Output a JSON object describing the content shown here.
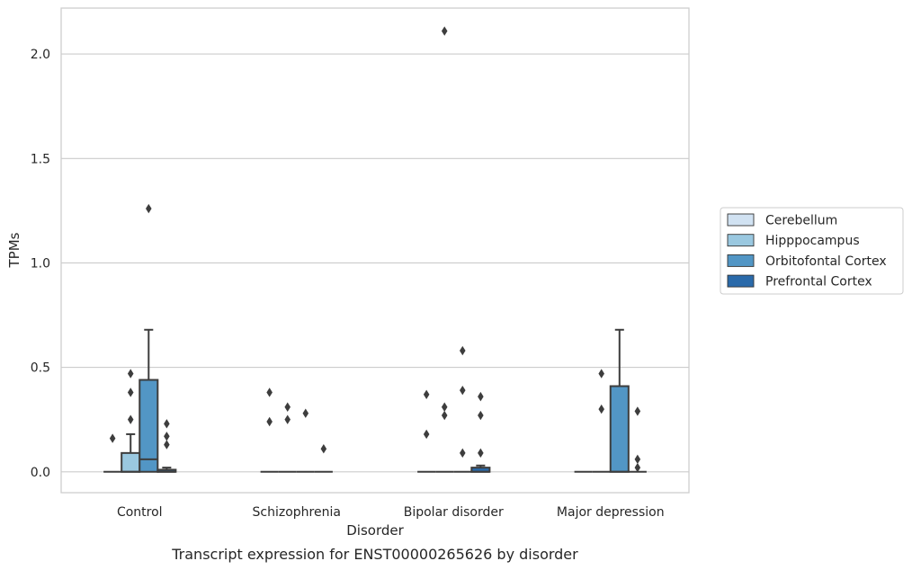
{
  "chart_data": {
    "type": "box",
    "caption": "Transcript expression for ENST00000265626 by disorder",
    "xlabel": "Disorder",
    "ylabel": "TPMs",
    "ylim": [
      -0.1,
      2.22
    ],
    "yticks": [
      0.0,
      0.5,
      1.0,
      1.5,
      2.0
    ],
    "ytick_labels": [
      "0.0",
      "0.5",
      "1.0",
      "1.5",
      "2.0"
    ],
    "grid": "horizontal",
    "legend_position": "right",
    "categories": [
      "Control",
      "Schizophrenia",
      "Bipolar disorder",
      "Major depression"
    ],
    "series": [
      {
        "name": "Cerebellum",
        "color": "#d1e2f2",
        "boxes": [
          {
            "q1": 0,
            "median": 0,
            "q3": 0,
            "whisker_low": 0,
            "whisker_high": 0,
            "outliers": [
              0.16
            ]
          },
          {
            "q1": 0,
            "median": 0,
            "q3": 0,
            "whisker_low": 0,
            "whisker_high": 0,
            "outliers": [
              0.24,
              0.38
            ]
          },
          {
            "q1": 0,
            "median": 0,
            "q3": 0,
            "whisker_low": 0,
            "whisker_high": 0,
            "outliers": [
              0.18,
              0.37
            ]
          },
          {
            "q1": 0,
            "median": 0,
            "q3": 0,
            "whisker_low": 0,
            "whisker_high": 0,
            "outliers": []
          }
        ]
      },
      {
        "name": "Hipppocampus",
        "color": "#9ac8e0",
        "boxes": [
          {
            "q1": 0,
            "median": 0,
            "q3": 0.09,
            "whisker_low": 0,
            "whisker_high": 0.18,
            "outliers": [
              0.25,
              0.38,
              0.47
            ]
          },
          {
            "q1": 0,
            "median": 0,
            "q3": 0,
            "whisker_low": 0,
            "whisker_high": 0,
            "outliers": [
              0.25,
              0.31
            ]
          },
          {
            "q1": 0,
            "median": 0,
            "q3": 0,
            "whisker_low": 0,
            "whisker_high": 0,
            "outliers": [
              0.27,
              0.31,
              2.11
            ]
          },
          {
            "q1": 0,
            "median": 0,
            "q3": 0,
            "whisker_low": 0,
            "whisker_high": 0,
            "outliers": [
              0.3,
              0.47
            ]
          }
        ]
      },
      {
        "name": "Orbitofontal Cortex",
        "color": "#5296c5",
        "boxes": [
          {
            "q1": 0,
            "median": 0.06,
            "q3": 0.44,
            "whisker_low": 0,
            "whisker_high": 0.68,
            "outliers": [
              1.26
            ]
          },
          {
            "q1": 0,
            "median": 0,
            "q3": 0,
            "whisker_low": 0,
            "whisker_high": 0,
            "outliers": [
              0.28
            ]
          },
          {
            "q1": 0,
            "median": 0,
            "q3": 0,
            "whisker_low": 0,
            "whisker_high": 0,
            "outliers": [
              0.09,
              0.39,
              0.58
            ]
          },
          {
            "q1": 0,
            "median": 0,
            "q3": 0.41,
            "whisker_low": 0,
            "whisker_high": 0.68,
            "outliers": []
          }
        ]
      },
      {
        "name": "Prefrontal Cortex",
        "color": "#2a6aaa",
        "boxes": [
          {
            "q1": 0,
            "median": 0,
            "q3": 0.01,
            "whisker_low": 0,
            "whisker_high": 0.02,
            "outliers": [
              0.13,
              0.17,
              0.23
            ]
          },
          {
            "q1": 0,
            "median": 0,
            "q3": 0,
            "whisker_low": 0,
            "whisker_high": 0,
            "outliers": [
              0.11
            ]
          },
          {
            "q1": 0,
            "median": 0,
            "q3": 0.02,
            "whisker_low": 0,
            "whisker_high": 0.03,
            "outliers": [
              0.09,
              0.27,
              0.36
            ]
          },
          {
            "q1": 0,
            "median": 0,
            "q3": 0,
            "whisker_low": 0,
            "whisker_high": 0,
            "outliers": [
              0.02,
              0.06,
              0.29
            ]
          }
        ]
      }
    ]
  }
}
